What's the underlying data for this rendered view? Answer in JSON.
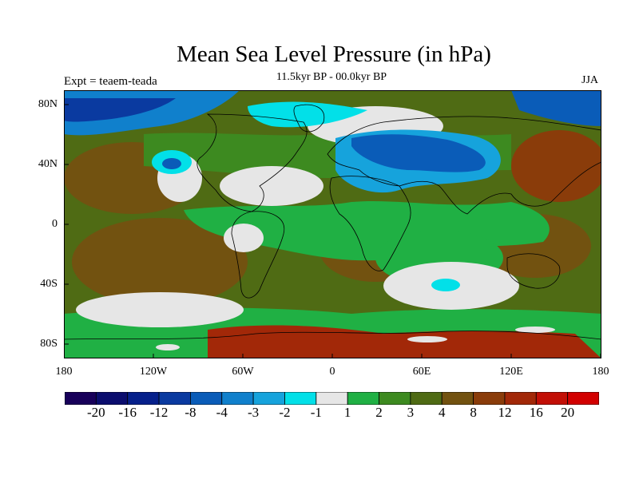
{
  "title": "Mean Sea Level Pressure (in hPa)",
  "subtitle": "11.5kyr BP - 00.0kyr BP",
  "left_label": "Expt = teaem-teada",
  "right_label": "JJA",
  "lat_ticks": [
    "80N",
    "40N",
    "0",
    "40S",
    "80S"
  ],
  "lon_ticks": [
    "180",
    "120W",
    "60W",
    "0",
    "60E",
    "120E",
    "180"
  ],
  "colorbar": {
    "colors": [
      "#18005a",
      "#0b0d6e",
      "#06208b",
      "#0a3aa0",
      "#0a5cb8",
      "#1080cc",
      "#16a3dc",
      "#02e0e8",
      "#e6e6e6",
      "#20b044",
      "#3d8a20",
      "#4f6b14",
      "#725210",
      "#8a3c0a",
      "#a22808",
      "#c20f06",
      "#d20000"
    ],
    "labels": [
      "-20",
      "-16",
      "-12",
      "-8",
      "-4",
      "-3",
      "-2",
      "-1",
      "1",
      "2",
      "3",
      "4",
      "8",
      "12",
      "16",
      "20"
    ]
  }
}
